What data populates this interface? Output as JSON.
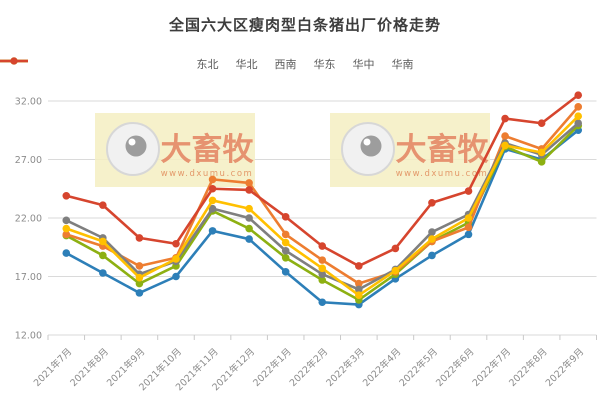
{
  "title": "全国六大区瘦肉型白条猪出厂价格走势",
  "watermark": {
    "brand": "大畜牧",
    "url": "www.dxumu.com"
  },
  "chart_data": {
    "type": "line",
    "title": "全国六大区瘦肉型白条猪出厂价格走势",
    "categories": [
      "2021年7月",
      "2021年8月",
      "2021年9月",
      "2021年10月",
      "2021年11月",
      "2021年12月",
      "2022年1月",
      "2022年2月",
      "2022年3月",
      "2022年4月",
      "2022年5月",
      "2022年6月",
      "2022年7月",
      "2022年8月",
      "2022年9月"
    ],
    "series": [
      {
        "id": "dongbei",
        "name": "东北",
        "color": "#2d7fb8",
        "values": [
          19.0,
          17.3,
          15.6,
          17.0,
          20.9,
          20.2,
          17.4,
          14.8,
          14.6,
          16.8,
          18.8,
          20.6,
          27.9,
          27.0,
          29.5
        ]
      },
      {
        "id": "huabei",
        "name": "华北",
        "color": "#8db012",
        "values": [
          20.5,
          18.8,
          16.4,
          17.9,
          22.6,
          21.1,
          18.6,
          16.7,
          15.0,
          17.2,
          20.0,
          21.6,
          28.1,
          26.8,
          29.9
        ]
      },
      {
        "id": "xinan",
        "name": "西南",
        "color": "#ed7d31",
        "values": [
          20.6,
          19.6,
          17.9,
          18.6,
          25.3,
          25.0,
          20.6,
          18.4,
          16.4,
          17.4,
          20.0,
          21.2,
          29.0,
          27.9,
          31.5
        ]
      },
      {
        "id": "huadong",
        "name": "华东",
        "color": "#7f7f7f",
        "values": [
          21.8,
          20.3,
          17.2,
          18.3,
          22.8,
          22.0,
          19.2,
          17.2,
          15.9,
          17.6,
          20.8,
          22.3,
          28.4,
          27.4,
          30.1
        ]
      },
      {
        "id": "huazhong",
        "name": "华中",
        "color": "#ffc000",
        "values": [
          21.1,
          20.0,
          16.9,
          18.5,
          23.5,
          22.8,
          19.9,
          17.7,
          15.4,
          17.5,
          20.2,
          22.0,
          28.2,
          27.6,
          30.7
        ]
      },
      {
        "id": "huanan",
        "name": "华南",
        "color": "#d6452e",
        "values": [
          23.9,
          23.1,
          20.3,
          19.8,
          24.5,
          24.4,
          22.1,
          19.6,
          17.9,
          19.4,
          23.3,
          24.3,
          30.5,
          30.1,
          32.5
        ]
      }
    ],
    "xlabel": "",
    "ylabel": "",
    "ylim": [
      12,
      32
    ],
    "yticks": [
      12,
      17,
      22,
      27,
      32
    ],
    "ytick_labels": [
      "12.00",
      "17.00",
      "22.00",
      "27.00",
      "32.00"
    ],
    "grid": true,
    "legend_position": "top"
  }
}
